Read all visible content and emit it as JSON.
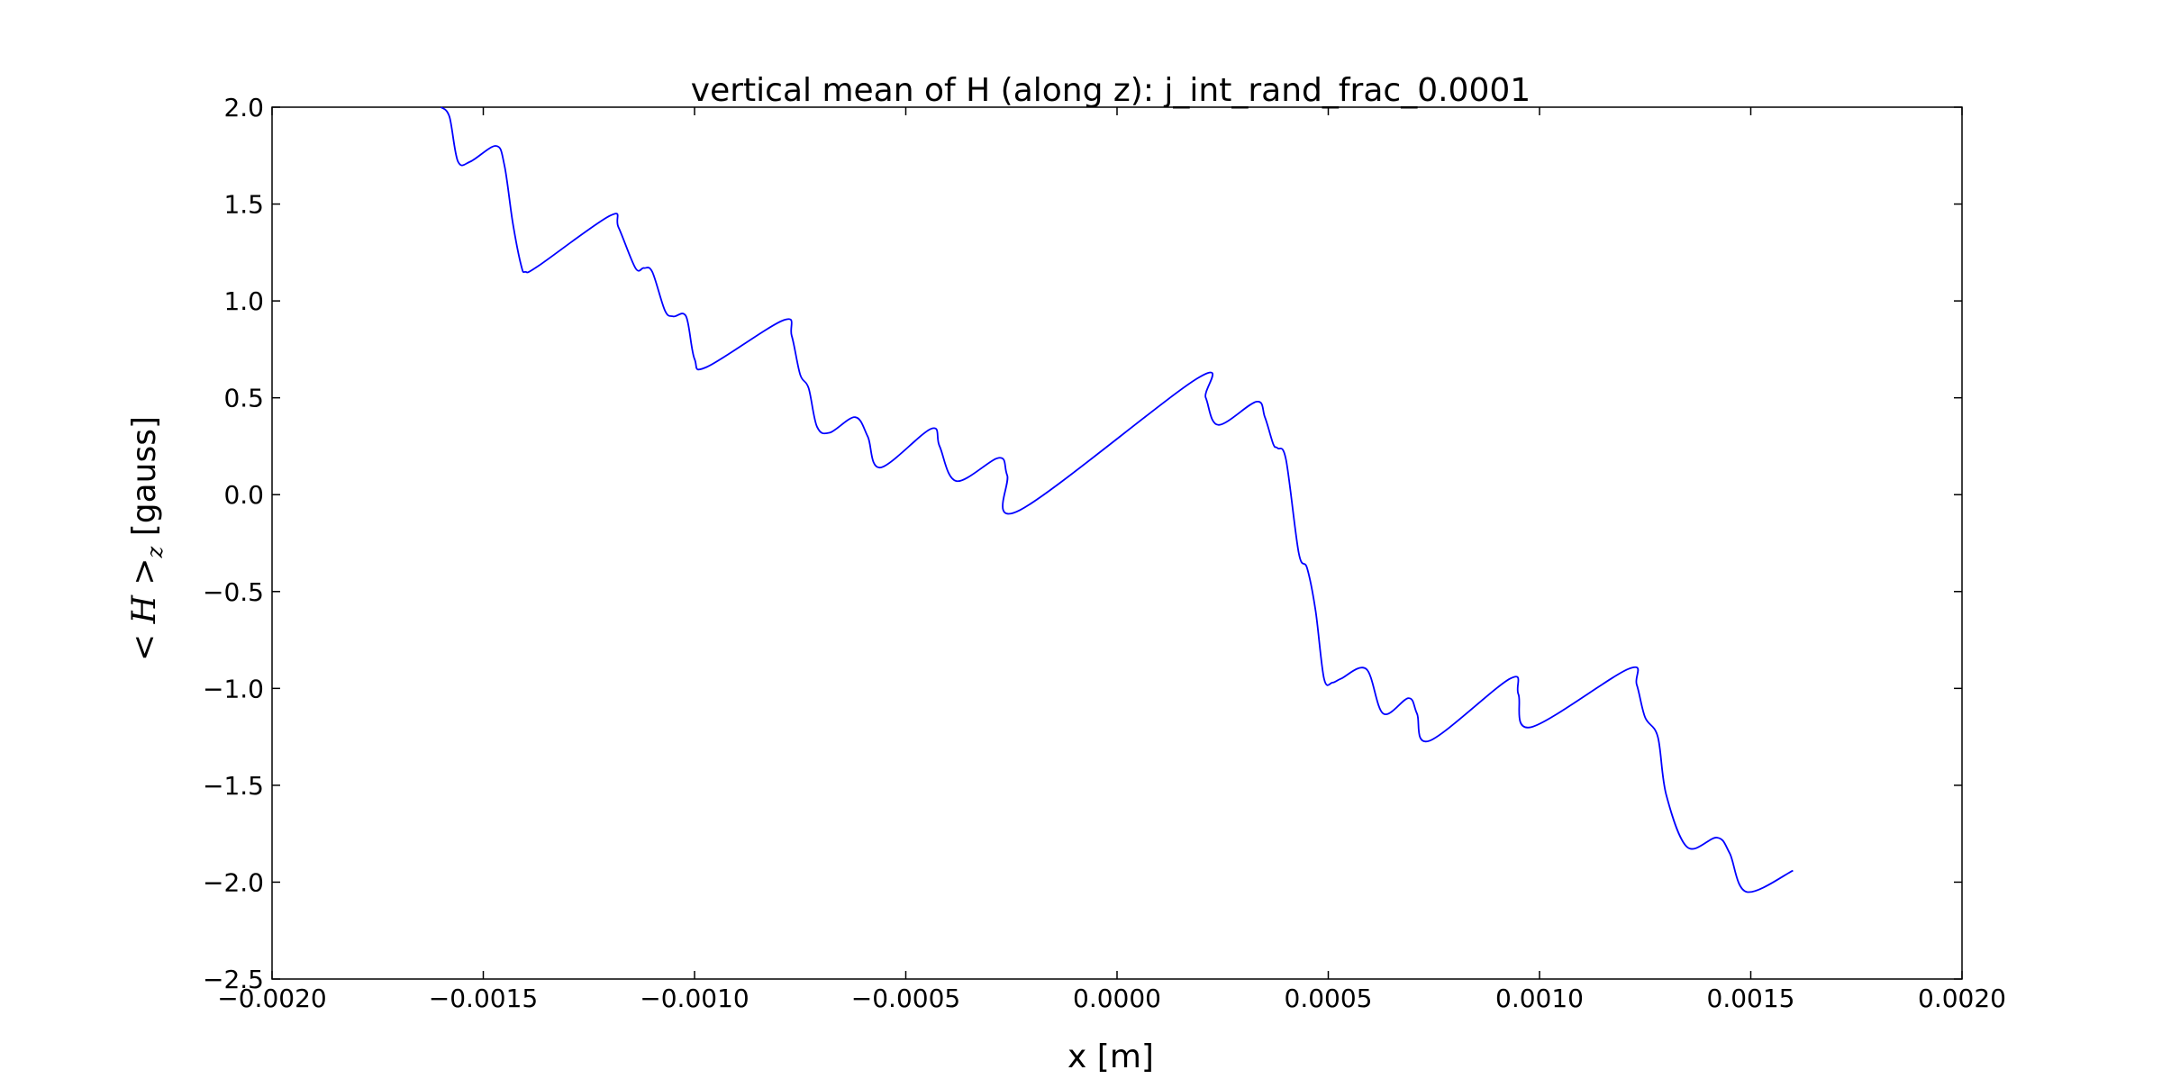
{
  "chart_data": {
    "type": "line",
    "title": "vertical mean of H (along z): j_int_rand_frac_0.0001",
    "xlabel": "x [m]",
    "ylabel": {
      "math": "< H >",
      "subscript": "z",
      "unit": " [gauss]"
    },
    "xlim": [
      -0.002,
      0.002
    ],
    "ylim": [
      -2.5,
      2.0
    ],
    "x_ticks": [
      -0.002,
      -0.0015,
      -0.001,
      -0.0005,
      0.0,
      0.0005,
      0.001,
      0.0015,
      0.002
    ],
    "x_tick_labels": [
      "−0.0020",
      "−0.0015",
      "−0.0010",
      "−0.0005",
      "0.0000",
      "0.0005",
      "0.0010",
      "0.0015",
      "0.0020"
    ],
    "y_ticks": [
      2.0,
      1.5,
      1.0,
      0.5,
      0.0,
      -0.5,
      -1.0,
      -1.5,
      -2.0,
      -2.5
    ],
    "y_tick_labels": [
      "2.0",
      "1.5",
      "1.0",
      "0.5",
      "0.0",
      "−0.5",
      "−1.0",
      "−1.5",
      "−2.0",
      "−2.5"
    ],
    "grid": false,
    "series": [
      {
        "color": "#0000ff",
        "x": [
          -0.0016,
          -0.00158,
          -0.00156,
          -0.00153,
          -0.00147,
          -0.00145,
          -0.00143,
          -0.00141,
          -0.0014,
          -0.00137,
          -0.0012,
          -0.00118,
          -0.00114,
          -0.00112,
          -0.0011,
          -0.00107,
          -0.00105,
          -0.00102,
          -0.001,
          -0.00097,
          -0.00079,
          -0.00077,
          -0.00075,
          -0.00073,
          -0.00071,
          -0.00068,
          -0.00062,
          -0.00059,
          -0.00056,
          -0.00044,
          -0.00042,
          -0.00038,
          -0.00028,
          -0.00026,
          -0.00023,
          0.00019,
          0.00021,
          0.00024,
          0.00033,
          0.00035,
          0.00037,
          0.00038,
          0.0004,
          0.00043,
          0.00045,
          0.00047,
          0.00049,
          0.00051,
          0.00053,
          0.00059,
          0.00063,
          0.00069,
          0.00071,
          0.00074,
          0.00093,
          0.00095,
          0.00098,
          0.00121,
          0.00123,
          0.00125,
          0.00128,
          0.0013,
          0.00135,
          0.00142,
          0.00145,
          0.00149,
          0.0016
        ],
        "y": [
          2.0,
          1.95,
          1.72,
          1.72,
          1.8,
          1.7,
          1.4,
          1.18,
          1.15,
          1.18,
          1.44,
          1.38,
          1.17,
          1.17,
          1.15,
          0.95,
          0.92,
          0.92,
          0.7,
          0.66,
          0.9,
          0.82,
          0.62,
          0.55,
          0.35,
          0.32,
          0.4,
          0.3,
          0.14,
          0.34,
          0.25,
          0.07,
          0.19,
          0.1,
          -0.08,
          0.6,
          0.5,
          0.36,
          0.48,
          0.4,
          0.26,
          0.24,
          0.18,
          -0.3,
          -0.38,
          -0.6,
          -0.95,
          -0.97,
          -0.95,
          -0.9,
          -1.13,
          -1.05,
          -1.13,
          -1.27,
          -0.95,
          -1.03,
          -1.2,
          -0.9,
          -0.98,
          -1.15,
          -1.25,
          -1.55,
          -1.82,
          -1.77,
          -1.85,
          -2.05,
          -1.94
        ]
      }
    ]
  }
}
